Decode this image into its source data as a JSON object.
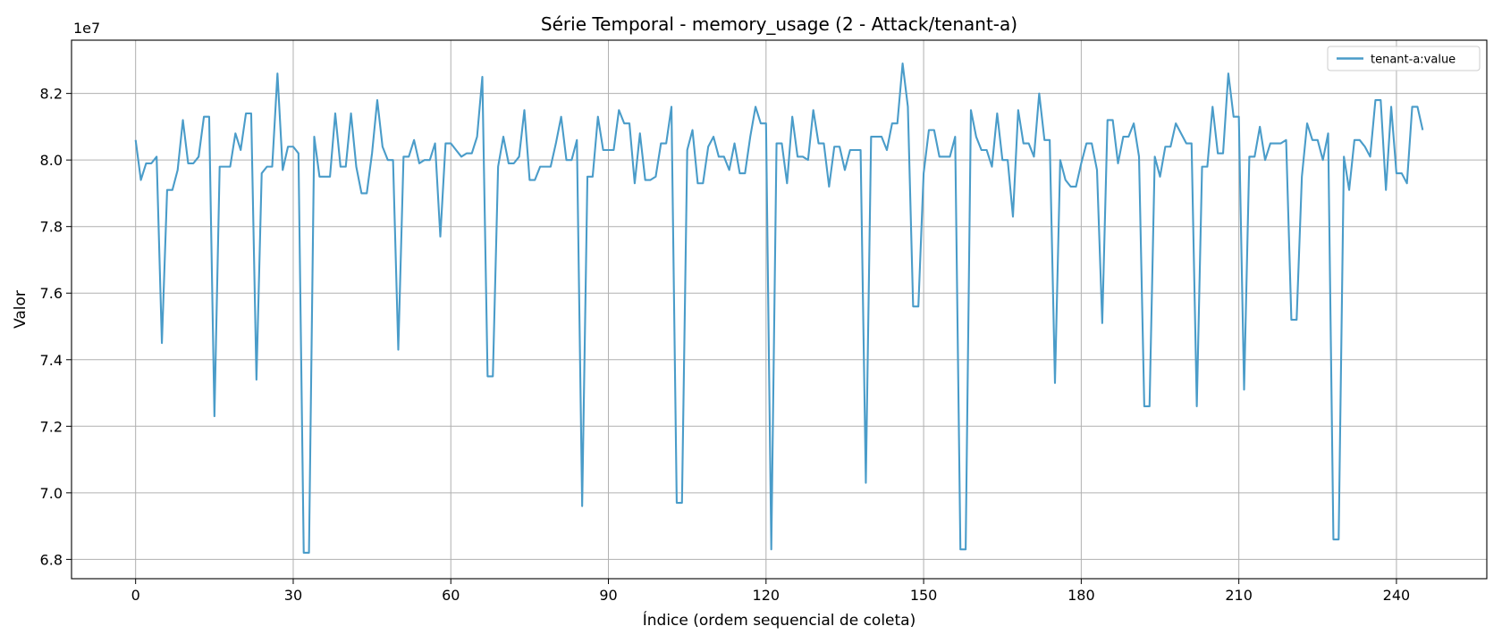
{
  "chart_data": {
    "type": "line",
    "title": "Série Temporal - memory_usage (2 - Attack/tenant-a)",
    "xlabel": "Índice (ordem sequencial de coleta)",
    "ylabel": "Valor",
    "offset_label": "1e7",
    "xlim": [
      -12.2,
      257.2
    ],
    "ylim": [
      67.42,
      83.6
    ],
    "x_ticks": [
      0,
      30,
      60,
      90,
      120,
      150,
      180,
      210,
      240
    ],
    "y_ticks": [
      68,
      70,
      72,
      74,
      76,
      78,
      80,
      82
    ],
    "y_tick_labels": [
      "6.8",
      "7.0",
      "7.2",
      "7.4",
      "7.6",
      "7.8",
      "8.0",
      "8.2"
    ],
    "grid": true,
    "legend_position": "top-right",
    "color": "#4a9cc9",
    "series": [
      {
        "name": "tenant-a:value",
        "values": [
          80.6,
          79.4,
          79.9,
          79.9,
          80.1,
          74.5,
          79.1,
          79.1,
          79.7,
          81.2,
          79.9,
          79.9,
          80.1,
          81.3,
          81.3,
          72.3,
          79.8,
          79.8,
          79.8,
          80.8,
          80.3,
          81.4,
          81.4,
          73.4,
          79.6,
          79.8,
          79.8,
          82.6,
          79.7,
          80.4,
          80.4,
          80.2,
          68.2,
          68.2,
          80.7,
          79.5,
          79.5,
          79.5,
          81.4,
          79.8,
          79.8,
          81.4,
          79.8,
          79.0,
          79.0,
          80.2,
          81.8,
          80.4,
          80.0,
          80.0,
          74.3,
          80.1,
          80.1,
          80.6,
          79.9,
          80.0,
          80.0,
          80.5,
          77.7,
          80.5,
          80.5,
          80.3,
          80.1,
          80.2,
          80.2,
          80.7,
          82.5,
          73.5,
          73.5,
          79.8,
          80.7,
          79.9,
          79.9,
          80.1,
          81.5,
          79.4,
          79.4,
          79.8,
          79.8,
          79.8,
          80.5,
          81.3,
          80.0,
          80.0,
          80.6,
          69.6,
          79.5,
          79.5,
          81.3,
          80.3,
          80.3,
          80.3,
          81.5,
          81.1,
          81.1,
          79.3,
          80.8,
          79.4,
          79.4,
          79.5,
          80.5,
          80.5,
          81.6,
          69.7,
          69.7,
          80.3,
          80.9,
          79.3,
          79.3,
          80.4,
          80.7,
          80.1,
          80.1,
          79.7,
          80.5,
          79.6,
          79.6,
          80.7,
          81.6,
          81.1,
          81.1,
          68.3,
          80.5,
          80.5,
          79.3,
          81.3,
          80.1,
          80.1,
          80.0,
          81.5,
          80.5,
          80.5,
          79.2,
          80.4,
          80.4,
          79.7,
          80.3,
          80.3,
          80.3,
          70.3,
          80.7,
          80.7,
          80.7,
          80.3,
          81.1,
          81.1,
          82.9,
          81.6,
          75.6,
          75.6,
          79.6,
          80.9,
          80.9,
          80.1,
          80.1,
          80.1,
          80.7,
          68.3,
          68.3,
          81.5,
          80.7,
          80.3,
          80.3,
          79.8,
          81.4,
          80.0,
          80.0,
          78.3,
          81.5,
          80.5,
          80.5,
          80.1,
          82.0,
          80.6,
          80.6,
          73.3,
          80.0,
          79.4,
          79.2,
          79.2,
          79.9,
          80.5,
          80.5,
          79.7,
          75.1,
          81.2,
          81.2,
          79.9,
          80.7,
          80.7,
          81.1,
          80.1,
          72.6,
          72.6,
          80.1,
          79.5,
          80.4,
          80.4,
          81.1,
          80.8,
          80.5,
          80.5,
          72.6,
          79.8,
          79.8,
          81.6,
          80.2,
          80.2,
          82.6,
          81.3,
          81.3,
          73.1,
          80.1,
          80.1,
          81.0,
          80.0,
          80.5,
          80.5,
          80.5,
          80.6,
          75.2,
          75.2,
          79.5,
          81.1,
          80.6,
          80.6,
          80.0,
          80.8,
          68.6,
          68.6,
          80.1,
          79.1,
          80.6,
          80.6,
          80.4,
          80.1,
          81.8,
          81.8,
          79.1,
          81.6,
          79.6,
          79.6,
          79.3,
          81.6,
          81.6,
          80.9
        ]
      }
    ]
  }
}
